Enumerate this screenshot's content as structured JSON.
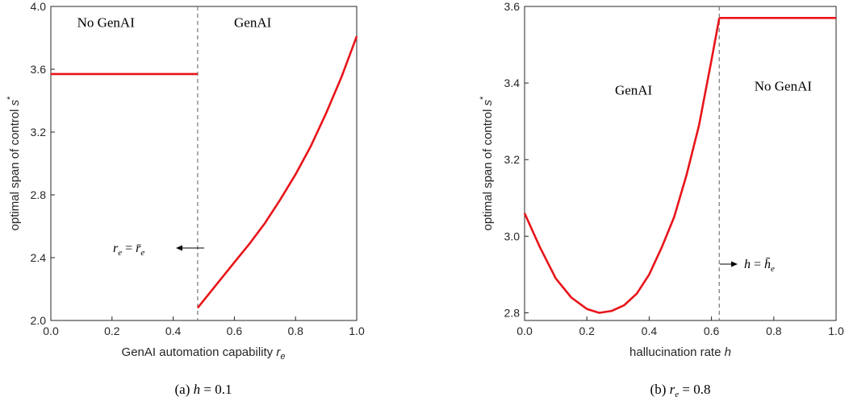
{
  "chart_data": [
    {
      "type": "line",
      "caption": "(a) h = 0.1",
      "xlabel": "GenAI automation capability r_e",
      "ylabel": "optimal span of control s*",
      "xlim": [
        0.0,
        1.0
      ],
      "ylim": [
        2.0,
        4.0
      ],
      "xticks": [
        "0.0",
        "0.2",
        "0.4",
        "0.6",
        "0.8",
        "1.0"
      ],
      "yticks": [
        "2.0",
        "2.4",
        "2.8",
        "3.2",
        "3.6",
        "4.0"
      ],
      "threshold_x": 0.48,
      "annotation": "r_e = r̄_e",
      "regions": [
        {
          "label": "No GenAI",
          "x": 0.18,
          "y": 3.87
        },
        {
          "label": "GenAI",
          "x": 0.66,
          "y": 3.87
        }
      ],
      "series": [
        {
          "color": "#e8141a",
          "x": [
            0.0,
            0.48
          ],
          "y": [
            3.57,
            3.57
          ]
        },
        {
          "color": "#e8141a",
          "x": [
            0.48,
            0.55,
            0.6,
            0.65,
            0.7,
            0.75,
            0.8,
            0.85,
            0.9,
            0.95,
            1.0
          ],
          "y": [
            2.08,
            2.25,
            2.37,
            2.49,
            2.62,
            2.77,
            2.93,
            3.11,
            3.32,
            3.55,
            3.81
          ]
        }
      ]
    },
    {
      "type": "line",
      "caption": "(b) r_e = 0.8",
      "xlabel": "hallucination rate h",
      "ylabel": "optimal span of control s*",
      "xlim": [
        0.0,
        1.0
      ],
      "ylim": [
        2.78,
        3.6
      ],
      "xticks": [
        "0.0",
        "0.2",
        "0.4",
        "0.6",
        "0.8",
        "1.0"
      ],
      "yticks": [
        "2.8",
        "3.0",
        "3.2",
        "3.4",
        "3.6"
      ],
      "threshold_x": 0.625,
      "annotation": "h = h̄_e",
      "regions": [
        {
          "label": "GenAI",
          "x": 0.35,
          "y": 3.37
        },
        {
          "label": "No GenAI",
          "x": 0.83,
          "y": 3.38
        }
      ],
      "series": [
        {
          "color": "#e8141a",
          "x": [
            0.0,
            0.05,
            0.1,
            0.15,
            0.2,
            0.24,
            0.28,
            0.32,
            0.36,
            0.4,
            0.44,
            0.48,
            0.52,
            0.56,
            0.6,
            0.625
          ],
          "y": [
            3.06,
            2.97,
            2.89,
            2.84,
            2.81,
            2.8,
            2.805,
            2.82,
            2.85,
            2.9,
            2.97,
            3.05,
            3.16,
            3.29,
            3.46,
            3.57
          ]
        },
        {
          "color": "#e8141a",
          "x": [
            0.625,
            1.0
          ],
          "y": [
            3.57,
            3.57
          ]
        }
      ]
    }
  ]
}
